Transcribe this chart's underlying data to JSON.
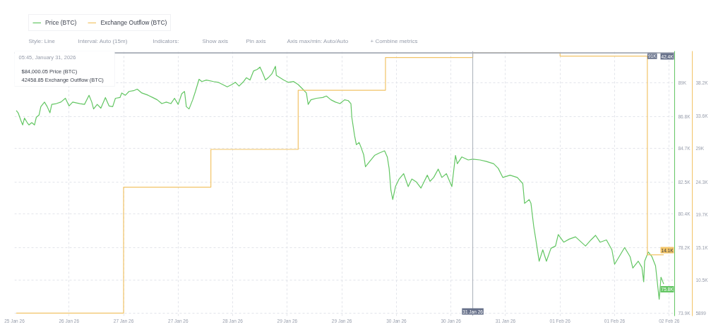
{
  "chart_data": {
    "type": "line",
    "annotations": [
      "Style: Line",
      "Interval: Auto (15m)",
      "Indicators:",
      "Show axis",
      "Pin axis",
      "Axis max/min: Auto/Auto",
      "+ Combine metrics",
      "05:45, January 31, 2026",
      "$84,000.05 Price (BTC)",
      "42458.85 Exchange Outflow (BTC)"
    ],
    "xlim": [
      "2026-01-25T23:45",
      "2026-02-02T13:15"
    ],
    "xticks": [
      {
        "value": "2026-01-25T23:45",
        "label": "25 Jan 26"
      },
      {
        "value": "2026-01-26T14:45",
        "label": "26 Jan 26"
      },
      {
        "value": "2026-01-27T05:45",
        "label": "27 Jan 26"
      },
      {
        "value": "2026-01-27T20:45",
        "label": "27 Jan 26"
      },
      {
        "value": "2026-01-28T11:45",
        "label": "28 Jan 26"
      },
      {
        "value": "2026-01-29T02:45",
        "label": "29 Jan 26"
      },
      {
        "value": "2026-01-29T17:45",
        "label": "29 Jan 26"
      },
      {
        "value": "2026-01-30T08:45",
        "label": "30 Jan 26"
      },
      {
        "value": "2026-01-30T23:45",
        "label": "30 Jan 26"
      },
      {
        "value": "2026-01-31T14:45",
        "label": "31 Jan 26"
      },
      {
        "value": "2026-02-01T05:45",
        "label": "01 Feb 26"
      },
      {
        "value": "2026-02-01T20:45",
        "label": "01 Feb 26"
      },
      {
        "value": "2026-02-02T11:45",
        "label": "02 Feb 26"
      }
    ],
    "ylim": [
      73700,
      91100
    ],
    "yticks": [
      {
        "value": 73900,
        "label": "73.9K"
      },
      {
        "value": 76050,
        "label": null
      },
      {
        "value": 78200,
        "label": "78.2K"
      },
      {
        "value": 80400,
        "label": "80.4K"
      },
      {
        "value": 82500,
        "label": "82.5K"
      },
      {
        "value": 84700,
        "label": "84.7K"
      },
      {
        "value": 86800,
        "label": "86.8K"
      },
      {
        "value": 89000,
        "label": "89K"
      }
    ],
    "y2lim": [
      5500,
      42700
    ],
    "y2ticks": [
      5899,
      {
        "value": 10500,
        "label": "10.5K"
      },
      {
        "value": 15100,
        "label": "15.1K"
      },
      {
        "value": 19700,
        "label": "19.7K"
      },
      {
        "value": 24300,
        "label": "24.3K"
      },
      {
        "value": 29000,
        "label": "29K"
      },
      {
        "value": 33600,
        "label": "33.6K"
      },
      {
        "value": 38200,
        "label": "38.2K"
      }
    ],
    "grid": true,
    "legend": "top left",
    "ref_lines": [
      {
        "axis": "x",
        "value": "2026-01-31T05:45",
        "label": "31 Jan 26",
        "color": "#a9aeb8"
      },
      {
        "axis": "y",
        "value": 91000,
        "label": "91K",
        "color": "#a9aeb8"
      },
      {
        "axis": "y2",
        "value": 42400,
        "label": "42.4K",
        "color": "#a9aeb8"
      }
    ],
    "series": [
      {
        "name": "Price (BTC)",
        "color": "#63c663",
        "x": [
          "2026-01-26T00:15",
          "2026-01-26T00:45",
          "2026-01-26T01:30",
          "2026-01-26T02:00",
          "2026-01-26T02:30",
          "2026-01-26T03:15",
          "2026-01-26T03:45",
          "2026-01-26T04:30",
          "2026-01-26T05:15",
          "2026-01-26T05:45",
          "2026-01-26T06:30",
          "2026-01-26T07:00",
          "2026-01-26T08:00",
          "2026-01-26T08:45",
          "2026-01-26T09:30",
          "2026-01-26T10:00",
          "2026-01-26T11:15",
          "2026-01-26T12:30",
          "2026-01-26T13:45",
          "2026-01-26T14:45",
          "2026-01-26T15:45",
          "2026-01-26T17:45",
          "2026-01-26T19:00",
          "2026-01-26T20:15",
          "2026-01-26T21:00",
          "2026-01-26T21:30",
          "2026-01-26T22:30",
          "2026-01-26T23:30",
          "2026-01-27T00:45",
          "2026-01-27T01:45",
          "2026-01-27T02:45",
          "2026-01-27T03:30",
          "2026-01-27T04:45",
          "2026-01-27T05:15",
          "2026-01-27T06:15",
          "2026-01-27T07:15",
          "2026-01-27T08:30",
          "2026-01-27T09:30",
          "2026-01-27T10:45",
          "2026-01-27T12:30",
          "2026-01-27T13:45",
          "2026-01-27T15:00",
          "2026-01-27T16:15",
          "2026-01-27T17:30",
          "2026-01-27T18:45",
          "2026-01-27T19:45",
          "2026-01-27T20:45",
          "2026-01-27T21:45",
          "2026-01-27T22:30",
          "2026-01-27T23:00",
          "2026-01-27T23:45",
          "2026-01-28T00:45",
          "2026-01-28T01:30",
          "2026-01-28T02:30",
          "2026-01-28T03:15",
          "2026-01-28T04:30",
          "2026-01-28T06:30",
          "2026-01-28T07:45",
          "2026-01-28T09:00",
          "2026-01-28T10:15",
          "2026-01-28T11:30",
          "2026-01-28T12:30",
          "2026-01-28T13:30",
          "2026-01-28T14:45",
          "2026-01-28T15:30",
          "2026-01-28T16:30",
          "2026-01-28T17:30",
          "2026-01-28T18:30",
          "2026-01-28T19:15",
          "2026-01-28T20:00",
          "2026-01-28T20:45",
          "2026-01-28T21:30",
          "2026-01-28T22:30",
          "2026-01-28T23:30",
          "2026-01-28T23:45",
          "2026-01-29T00:45",
          "2026-01-29T01:45",
          "2026-01-29T03:00",
          "2026-01-29T04:30",
          "2026-01-29T05:45",
          "2026-01-29T07:00",
          "2026-01-29T08:00",
          "2026-01-29T08:30",
          "2026-01-29T09:15",
          "2026-01-29T10:45",
          "2026-01-29T12:30",
          "2026-01-29T13:30",
          "2026-01-29T14:45",
          "2026-01-29T16:00",
          "2026-01-29T17:15",
          "2026-01-29T18:30",
          "2026-01-29T19:30",
          "2026-01-29T20:15",
          "2026-01-29T20:30",
          "2026-01-29T21:15",
          "2026-01-29T21:45",
          "2026-01-29T22:30",
          "2026-01-29T23:00",
          "2026-01-29T23:45",
          "2026-01-30T00:15",
          "2026-01-30T01:15",
          "2026-01-30T02:45",
          "2026-01-30T04:00",
          "2026-01-30T05:30",
          "2026-01-30T06:15",
          "2026-01-30T06:45",
          "2026-01-30T07:15",
          "2026-01-30T07:45",
          "2026-01-30T08:30",
          "2026-01-30T09:30",
          "2026-01-30T10:45",
          "2026-01-30T12:00",
          "2026-01-30T13:00",
          "2026-01-30T14:15",
          "2026-01-30T15:30",
          "2026-01-30T17:15",
          "2026-01-30T18:00",
          "2026-01-30T19:00",
          "2026-01-30T20:15",
          "2026-01-30T21:15",
          "2026-01-30T22:30",
          "2026-01-31T00:00",
          "2026-01-31T01:00",
          "2026-01-31T01:30",
          "2026-01-31T02:45",
          "2026-01-31T04:30",
          "2026-01-31T05:45",
          "2026-01-31T07:45",
          "2026-01-31T09:30",
          "2026-01-31T11:30",
          "2026-01-31T12:45",
          "2026-01-31T14:00",
          "2026-01-31T16:00",
          "2026-01-31T18:00",
          "2026-01-31T19:30",
          "2026-01-31T20:00",
          "2026-01-31T21:15",
          "2026-01-31T21:45",
          "2026-01-31T22:30",
          "2026-01-31T23:00",
          "2026-02-01T00:00",
          "2026-02-01T01:00",
          "2026-02-01T02:00",
          "2026-02-01T03:15",
          "2026-02-01T04:30",
          "2026-02-01T05:15",
          "2026-02-01T06:45",
          "2026-02-01T08:15",
          "2026-02-01T10:00",
          "2026-02-01T12:45",
          "2026-02-01T14:15",
          "2026-02-01T15:30",
          "2026-02-01T16:45",
          "2026-02-01T18:30",
          "2026-02-01T20:00",
          "2026-02-01T20:45",
          "2026-02-01T22:00",
          "2026-02-01T23:30",
          "2026-02-02T01:00",
          "2026-02-02T01:45",
          "2026-02-02T03:15",
          "2026-02-02T04:15",
          "2026-02-02T04:45",
          "2026-02-02T05:00",
          "2026-02-02T06:00",
          "2026-02-02T07:00",
          "2026-02-02T08:00",
          "2026-02-02T09:00",
          "2026-02-02T09:30",
          "2026-02-02T10:15"
        ],
        "values": [
          87200,
          87050,
          86550,
          86250,
          86700,
          86400,
          86250,
          86400,
          86250,
          86750,
          86900,
          87450,
          87750,
          87450,
          87050,
          87600,
          87650,
          87750,
          88000,
          87500,
          87750,
          87650,
          87600,
          88200,
          87750,
          87300,
          87600,
          87350,
          88050,
          87500,
          87450,
          88000,
          88050,
          88350,
          88200,
          88450,
          88500,
          88600,
          88350,
          88200,
          88050,
          87900,
          87650,
          87750,
          87650,
          88000,
          87600,
          88300,
          88450,
          87450,
          87300,
          87900,
          88450,
          89250,
          89100,
          89200,
          89100,
          89050,
          88900,
          88750,
          88900,
          89050,
          88800,
          89100,
          89350,
          89200,
          89800,
          89900,
          90050,
          89650,
          89200,
          89350,
          89600,
          90100,
          89500,
          89350,
          89200,
          89050,
          89100,
          88900,
          88600,
          88350,
          87600,
          87900,
          88000,
          88050,
          88150,
          87900,
          87750,
          87650,
          87900,
          87850,
          87650,
          86750,
          85550,
          84950,
          85100,
          84800,
          84300,
          83500,
          83800,
          84250,
          84400,
          84550,
          84150,
          83400,
          81950,
          81350,
          82200,
          82700,
          83050,
          82200,
          82700,
          82500,
          82100,
          82950,
          82550,
          82800,
          83350,
          82800,
          83050,
          82200,
          84250,
          83700,
          84150,
          83950,
          84000.05,
          83950,
          83850,
          83700,
          83400,
          82800,
          82950,
          82800,
          82400,
          81100,
          81350,
          81100,
          79600,
          78850,
          77300,
          78050,
          77300,
          78150,
          78300,
          79050,
          78550,
          78750,
          78900,
          78300,
          78700,
          79000,
          78550,
          78700,
          78050,
          77100,
          77600,
          78200,
          77600,
          76850,
          77300,
          76900,
          75950,
          77300,
          77900,
          77600,
          77000,
          74800,
          76250,
          75800
        ],
        "value_labels": [
          null,
          null,
          null,
          null,
          null,
          null,
          null,
          null,
          null,
          null,
          null,
          null,
          null,
          null,
          null,
          null,
          null,
          null,
          null,
          null,
          null,
          null,
          null,
          null,
          null,
          null,
          null,
          null,
          null,
          null,
          null,
          null,
          null,
          null,
          null,
          null,
          null,
          null,
          null,
          null,
          null,
          null,
          null,
          null,
          null,
          null,
          null,
          null,
          null,
          null,
          null,
          null,
          null,
          null,
          null,
          null,
          null,
          null,
          null,
          null,
          null,
          null,
          null,
          null,
          null,
          null,
          null,
          null,
          null,
          null,
          null,
          null,
          null,
          null,
          null,
          null,
          null,
          null,
          null,
          null,
          null,
          null,
          null,
          null,
          null,
          null,
          null,
          null,
          null,
          null,
          null,
          null,
          null,
          null,
          null,
          null,
          null,
          null,
          null,
          null,
          null,
          null,
          null,
          null,
          null,
          null,
          null,
          null,
          null,
          null,
          null,
          null,
          null,
          null,
          null,
          null,
          null,
          null,
          null,
          null,
          null,
          null,
          null,
          null,
          null,
          null,
          null,
          null,
          null,
          null,
          null,
          null,
          null,
          null,
          null,
          null,
          null,
          null,
          null,
          null,
          null,
          null,
          null,
          null,
          null,
          null,
          null,
          null,
          null,
          null,
          null,
          null,
          null,
          null,
          null,
          null,
          null,
          null,
          null,
          null,
          null,
          null,
          null,
          null,
          null,
          null,
          null,
          null,
          null,
          "75.8K"
        ]
      },
      {
        "name": "Exchange Outflow (BTC)",
        "type": "step",
        "axis": "y2",
        "color": "#f2c467",
        "x": [
          "2026-01-26T00:15",
          "2026-01-27T05:45",
          "2026-01-28T05:45",
          "2026-01-29T05:45",
          "2026-01-30T05:45",
          "2026-01-31T05:45",
          "2026-02-01T05:45",
          "2026-02-02T05:45",
          "2026-02-02T10:15"
        ],
        "values": [
          5899,
          23600,
          28900,
          37200,
          41800,
          42458.85,
          42000,
          14100,
          14100
        ],
        "value_labels": [
          null,
          null,
          null,
          null,
          null,
          null,
          null,
          null,
          "14.1K"
        ]
      }
    ]
  }
}
